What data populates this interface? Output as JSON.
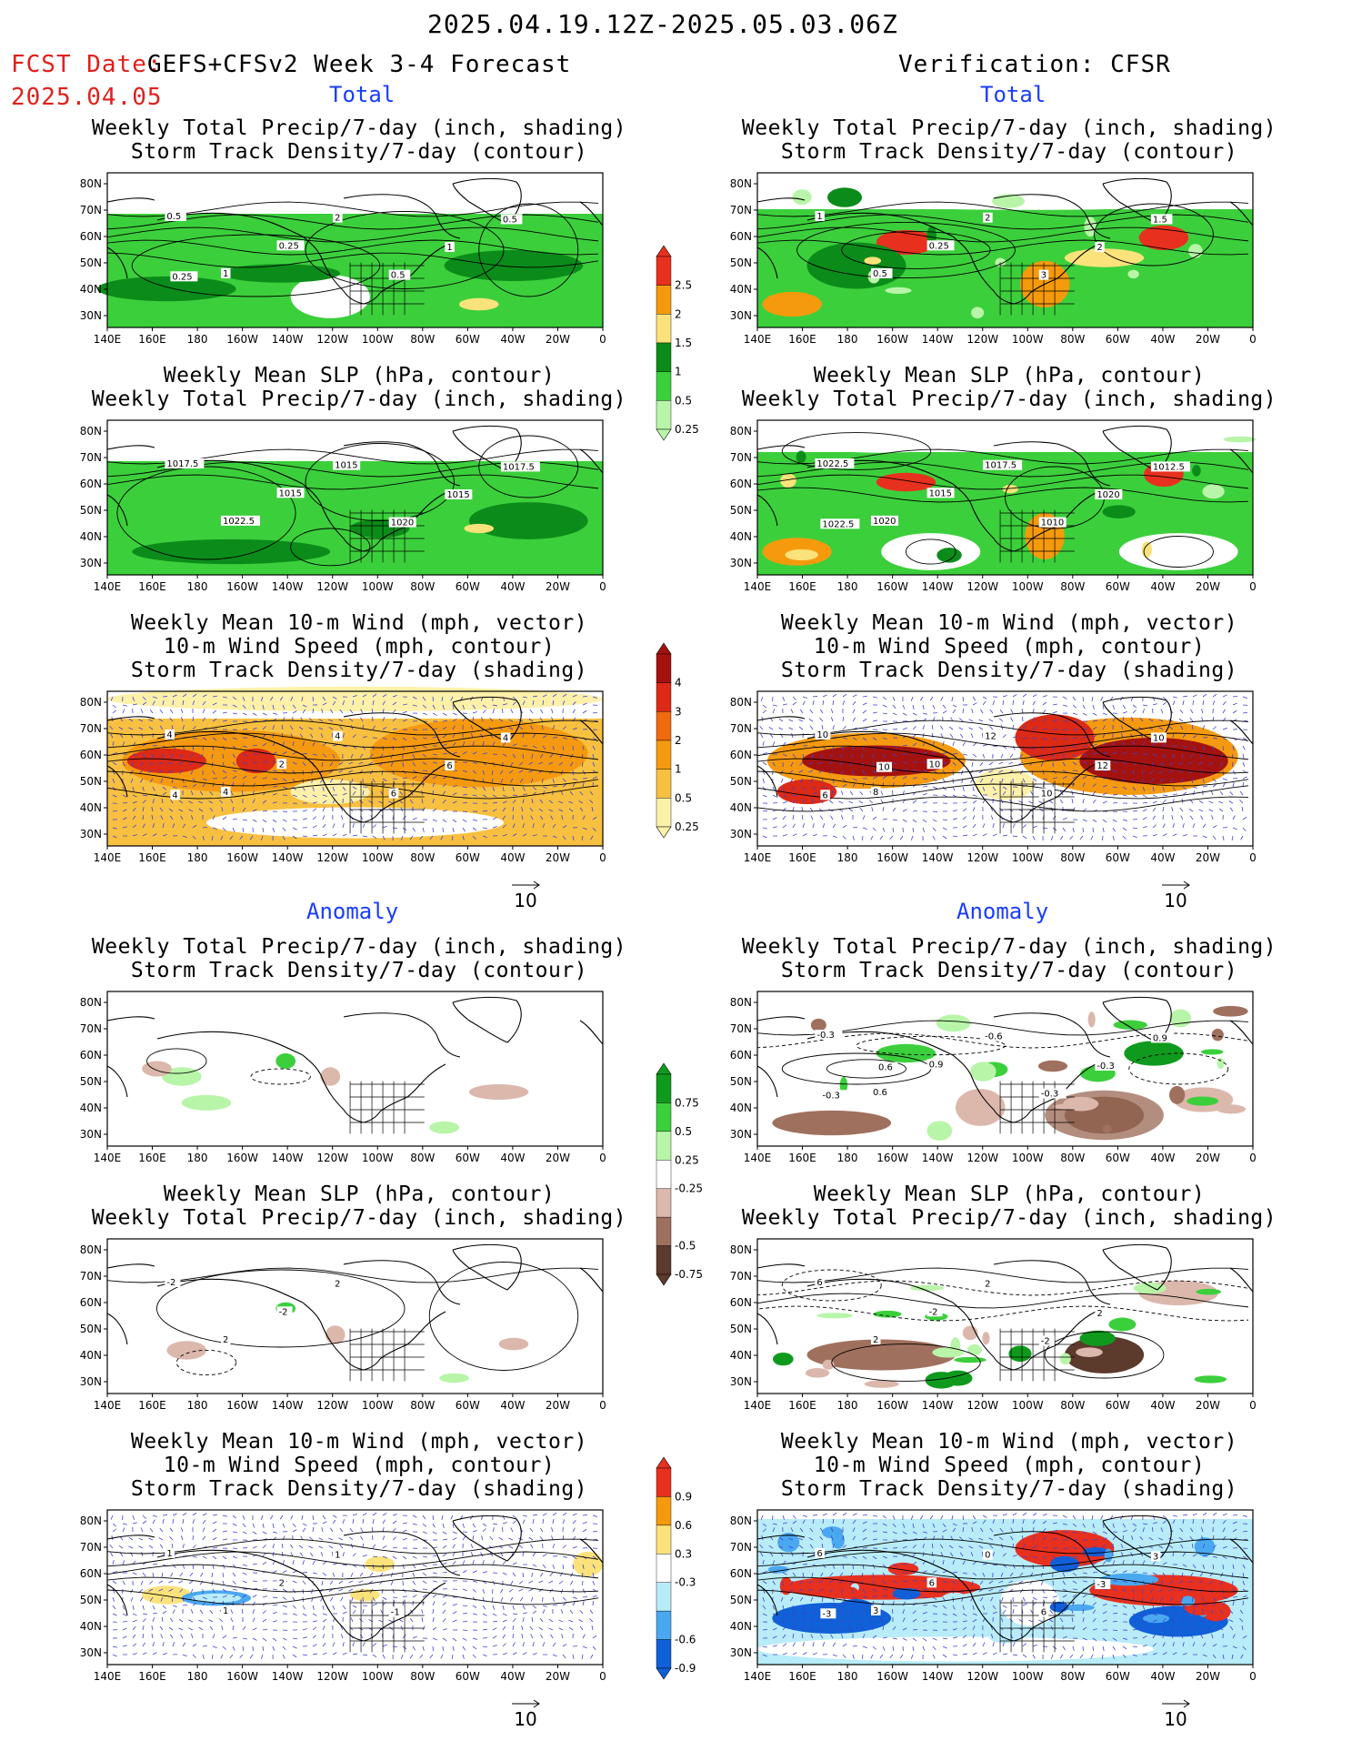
{
  "header": {
    "date_range": "2025.04.19.12Z-2025.05.03.06Z",
    "fcst_label": "FCST Date:",
    "forecast_name": "GEFS+CFSv2 Week 3-4 Forecast",
    "fcst_date": "2025.04.05",
    "verification": "Verification: CFSR"
  },
  "sections": {
    "total": "Total",
    "anomaly": "Anomaly"
  },
  "titles": {
    "precip_storm": [
      "Weekly Total Precip/7-day (inch, shading)",
      "Storm Track Density/7-day (contour)"
    ],
    "slp_precip": [
      "Weekly Mean SLP (hPa, contour)",
      "Weekly Total Precip/7-day (inch, shading)"
    ],
    "wind_storm": [
      "Weekly Mean 10-m Wind (mph, vector)",
      "10-m Wind Speed (mph, contour)",
      "Storm Track Density/7-day (shading)"
    ]
  },
  "axes": {
    "lat_labels": [
      "80N",
      "70N",
      "60N",
      "50N",
      "40N",
      "30N"
    ],
    "lon_labels": [
      "140E",
      "160E",
      "180",
      "160W",
      "140W",
      "120W",
      "100W",
      "80W",
      "60W",
      "40W",
      "20W",
      "0"
    ]
  },
  "vector_ref": "10",
  "colorbars": {
    "precip_total": {
      "labels": [
        "2.5",
        "2",
        "1.5",
        "1",
        "0.5",
        "0.25"
      ],
      "colors": [
        "#e8301e",
        "#f59a0c",
        "#fbe27a",
        "#0b8c1a",
        "#3ccf3c",
        "#b8f5a8"
      ]
    },
    "storm_total": {
      "labels": [
        "4",
        "3",
        "2",
        "1",
        "0.5",
        "0.25"
      ],
      "colors": [
        "#a4120f",
        "#dc2a16",
        "#f06a10",
        "#f59a10",
        "#f8c040",
        "#fdf0a8"
      ]
    },
    "precip_anom": {
      "labels": [
        "0.75",
        "0.5",
        "0.25",
        "-0.25",
        "-0.5",
        "-0.75"
      ],
      "colors": [
        "#0f9a1e",
        "#3ccf3c",
        "#b8f5a8",
        "#ffffff",
        "#dcb8ac",
        "#a0705e",
        "#5c3a2c"
      ]
    },
    "storm_anom": {
      "labels": [
        "0.9",
        "0.6",
        "0.3",
        "-0.3",
        "-0.6",
        "-0.9"
      ],
      "colors": [
        "#e8301e",
        "#f59a0c",
        "#fbe27a",
        "#ffffff",
        "#b8ecf8",
        "#4aa8f0",
        "#1060d8"
      ]
    }
  },
  "panels": [
    {
      "id": "fcst-total-precip",
      "labels": [
        "0.5",
        "1",
        "0.25",
        "2",
        "0.5",
        "1",
        "0.5",
        "0.25"
      ]
    },
    {
      "id": "obs-total-precip",
      "labels": [
        "1",
        "0.5",
        "0.25",
        "2",
        "3",
        "2",
        "1.5"
      ]
    },
    {
      "id": "fcst-total-slp",
      "labels": [
        "1017.5",
        "1022.5",
        "1015",
        "1015",
        "1020",
        "1015",
        "1017.5"
      ]
    },
    {
      "id": "obs-total-slp",
      "labels": [
        "1022.5",
        "1020",
        "1015",
        "1017.5",
        "1010",
        "1020",
        "1012.5",
        "1022.5"
      ]
    },
    {
      "id": "fcst-total-wind",
      "labels": [
        "4",
        "4",
        "2",
        "4",
        "6",
        "6",
        "4",
        "4"
      ]
    },
    {
      "id": "obs-total-wind",
      "labels": [
        "10",
        "8",
        "10",
        "12",
        "10",
        "12",
        "10",
        "6",
        "10"
      ]
    },
    {
      "id": "fcst-anom-precip",
      "labels": []
    },
    {
      "id": "obs-anom-precip",
      "labels": [
        "-0.3",
        "0.6",
        "0.9",
        "-0.6",
        "-0.3",
        "-0.3",
        "0.9",
        "-0.3",
        "0.6"
      ]
    },
    {
      "id": "fcst-anom-slp",
      "labels": [
        "-2",
        "2",
        "-2",
        "2"
      ]
    },
    {
      "id": "obs-anom-slp",
      "labels": [
        "6",
        "2",
        "-2",
        "2",
        "-2",
        "2"
      ]
    },
    {
      "id": "fcst-anom-wind",
      "labels": [
        "1",
        "1",
        "2",
        "1",
        "-1"
      ]
    },
    {
      "id": "obs-anom-wind",
      "labels": [
        "6",
        "3",
        "6",
        "0",
        "6",
        "-3",
        "3",
        "-3"
      ]
    }
  ]
}
